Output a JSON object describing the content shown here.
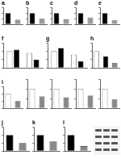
{
  "chart_data": [
    {
      "type": "bar",
      "title": "a",
      "categories": [
        null,
        null
      ],
      "values": [
        1,
        0.4
      ],
      "colors": [
        "#000000",
        "#999999"
      ],
      "ylim": [
        0,
        1.5
      ],
      "yticks": [
        0,
        0.5,
        1,
        1.5
      ],
      "tick_labels": false
    },
    {
      "type": "bar",
      "title": "b",
      "categories": [
        null,
        null
      ],
      "values": [
        1,
        0.5
      ],
      "colors": [
        "#000000",
        "#999999"
      ],
      "ylim": [
        0,
        1.5
      ],
      "yticks": [
        0,
        0.5,
        1,
        1.5
      ],
      "tick_labels": false
    },
    {
      "type": "bar",
      "title": "c",
      "categories": [
        null,
        null
      ],
      "values": [
        1,
        0.45
      ],
      "colors": [
        "#000000",
        "#999999"
      ],
      "ylim": [
        0,
        1.5
      ],
      "yticks": [
        0,
        0.5,
        1,
        1.5
      ],
      "tick_labels": false
    },
    {
      "type": "bar",
      "title": "d",
      "categories": [
        null,
        null
      ],
      "values": [
        1,
        0.6
      ],
      "colors": [
        "#000000",
        "#999999"
      ],
      "ylim": [
        0,
        1.5
      ],
      "yticks": [
        0,
        0.5,
        1,
        1.5
      ],
      "tick_labels": false
    },
    {
      "type": "bar",
      "title": "e",
      "categories": [
        null,
        null
      ],
      "values": [
        1,
        0.35
      ],
      "colors": [
        "#000000",
        "#999999"
      ],
      "ylim": [
        0,
        1.5
      ],
      "yticks": [
        0,
        0.5,
        1,
        1.5
      ],
      "tick_labels": false
    },
    {
      "type": "bar",
      "title": "f",
      "categories": [
        null,
        null
      ],
      "series": [
        {
          "color": "#ffffff",
          "values": [
            1,
            0.9
          ]
        },
        {
          "color": "#000000",
          "values": [
            1.1,
            0.5
          ]
        }
      ],
      "ylim": [
        0,
        1.5
      ],
      "yticks": [
        0,
        0.5,
        1,
        1.5
      ],
      "tick_labels": false
    },
    {
      "type": "bar",
      "title": "g",
      "categories": [
        null,
        null
      ],
      "series": [
        {
          "color": "#ffffff",
          "values": [
            1,
            0.8
          ]
        },
        {
          "color": "#000000",
          "values": [
            1.2,
            0.4
          ]
        }
      ],
      "ylim": [
        0,
        1.5
      ],
      "yticks": [
        0,
        0.5,
        1,
        1.5
      ],
      "tick_labels": false
    },
    {
      "type": "bar",
      "title": "h",
      "categories": [
        null,
        null,
        null
      ],
      "values": [
        1,
        0.7,
        0.3
      ],
      "colors": [
        "#ffffff",
        "#000000",
        "#888888"
      ],
      "ylim": [
        0,
        1.5
      ],
      "yticks": [
        0,
        0.5,
        1,
        1.5
      ],
      "tick_labels": false
    },
    {
      "type": "bar",
      "title": "i",
      "categories": [
        null,
        null
      ],
      "values": [
        1,
        0.5
      ],
      "colors": [
        "#ffffff",
        "#888888"
      ],
      "ylim": [
        0,
        1.5
      ],
      "yticks": [
        0,
        0.5,
        1,
        1.5
      ],
      "tick_labels": false
    },
    {
      "type": "bar",
      "categories": [
        null,
        null
      ],
      "values": [
        1,
        0.6
      ],
      "colors": [
        "#ffffff",
        "#888888"
      ],
      "ylim": [
        0,
        1.5
      ],
      "yticks": [
        0,
        0.5,
        1,
        1.5
      ],
      "tick_labels": false
    },
    {
      "type": "bar",
      "categories": [
        null,
        null
      ],
      "values": [
        1,
        0.55
      ],
      "colors": [
        "#ffffff",
        "#888888"
      ],
      "ylim": [
        0,
        1.5
      ],
      "yticks": [
        0,
        0.5,
        1,
        1.5
      ],
      "tick_labels": false
    },
    {
      "type": "bar",
      "categories": [
        null,
        null
      ],
      "values": [
        1,
        0.65
      ],
      "colors": [
        "#ffffff",
        "#888888"
      ],
      "ylim": [
        0,
        1.5
      ],
      "yticks": [
        0,
        0.5,
        1,
        1.5
      ],
      "tick_labels": false
    },
    {
      "type": "bar",
      "categories": [
        null,
        null
      ],
      "values": [
        1,
        0.45
      ],
      "colors": [
        "#ffffff",
        "#888888"
      ],
      "ylim": [
        0,
        1.5
      ],
      "yticks": [
        0,
        0.5,
        1,
        1.5
      ],
      "tick_labels": false
    },
    {
      "type": "bar",
      "title": "j",
      "categories": [
        null,
        null
      ],
      "values": [
        1,
        0.5
      ],
      "colors": [
        "#000000",
        "#888888"
      ],
      "ylim": [
        0,
        1.5
      ],
      "yticks": [
        0,
        0.5,
        1,
        1.5
      ],
      "tick_labels": false
    },
    {
      "type": "bar",
      "title": "k",
      "categories": [
        null,
        null
      ],
      "values": [
        1,
        0.6
      ],
      "colors": [
        "#000000",
        "#888888"
      ],
      "ylim": [
        0,
        1.5
      ],
      "yticks": [
        0,
        0.5,
        1,
        1.5
      ],
      "tick_labels": false
    },
    {
      "type": "bar",
      "title": "l",
      "categories": [
        null,
        null
      ],
      "values": [
        1,
        0.3
      ],
      "colors": [
        "#000000",
        "#888888"
      ],
      "ylim": [
        0,
        1.5
      ],
      "yticks": [
        0,
        0.5,
        1,
        1.5
      ],
      "tick_labels": false
    }
  ]
}
